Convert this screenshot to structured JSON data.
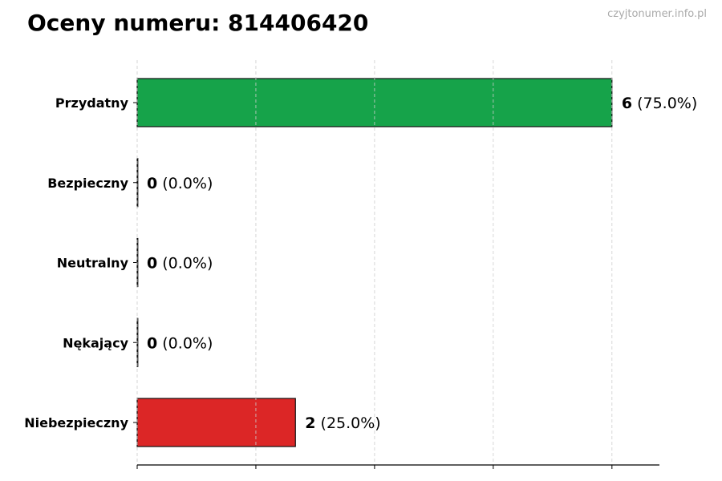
{
  "chart_data": {
    "type": "bar",
    "orientation": "horizontal",
    "title": "Oceny numeru: 814406420",
    "watermark": "czyjtonumer.info.pl",
    "categories": [
      "Przydatny",
      "Bezpieczny",
      "Neutralny",
      "Nękający",
      "Niebezpieczny"
    ],
    "values": [
      6,
      0,
      0,
      0,
      2
    ],
    "percent_labels": [
      "(75.0%)",
      "(0.0%)",
      "(0.0%)",
      "(0.0%)",
      "(25.0%)"
    ],
    "colors": [
      "#16a34a",
      "#16a34a",
      "#9ca3af",
      "#dc2626",
      "#dc2626"
    ],
    "xlim": [
      0,
      6.6
    ],
    "xticks": [
      0,
      1.5,
      3,
      4.5,
      6
    ],
    "xtick_labels_shown": false,
    "grid": "x-dashed",
    "xlabel": "",
    "ylabel": ""
  }
}
